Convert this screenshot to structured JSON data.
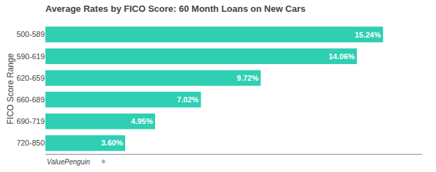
{
  "chart_data": {
    "type": "bar",
    "orientation": "horizontal",
    "title": "Average Rates by FICO Score: 60 Month Loans on New Cars",
    "ylabel": "FICO Score Range",
    "categories": [
      "720-850",
      "690-719",
      "660-689",
      "620-659",
      "590-619",
      "500-589"
    ],
    "values": [
      3.6,
      4.95,
      7.02,
      9.72,
      14.06,
      15.24
    ],
    "value_labels": [
      "3.60%",
      "4.95%",
      "7.02%",
      "9.72%",
      "14.06%",
      "15.24%"
    ],
    "data_labels": true,
    "color": "#2ecfb2",
    "xlim": [
      0,
      17.0
    ],
    "tick_labels": "y",
    "grid": false,
    "annotations": [
      "ValuePenguin",
      "◆"
    ]
  }
}
